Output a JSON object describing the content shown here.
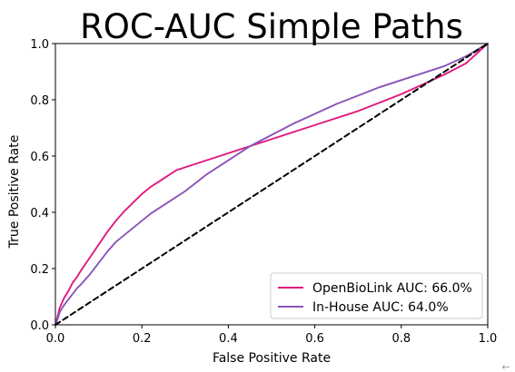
{
  "chart_data": {
    "type": "line",
    "title": "ROC-AUC Simple Paths",
    "xlabel": "False Positive Rate",
    "ylabel": "True Positive Rate",
    "xlim": [
      0.0,
      1.0
    ],
    "ylim": [
      0.0,
      1.0
    ],
    "x_ticks": [
      "0.0",
      "0.2",
      "0.4",
      "0.6",
      "0.8",
      "1.0"
    ],
    "y_ticks": [
      "0.0",
      "0.2",
      "0.4",
      "0.6",
      "0.8",
      "1.0"
    ],
    "grid": false,
    "legend_position": "lower-right",
    "series": [
      {
        "name": "OpenBioLink AUC: 66.0%",
        "color": "#e0197d",
        "style": "solid",
        "x": [
          0.0,
          0.005,
          0.01,
          0.02,
          0.03,
          0.04,
          0.05,
          0.06,
          0.08,
          0.1,
          0.12,
          0.14,
          0.16,
          0.18,
          0.2,
          0.22,
          0.24,
          0.26,
          0.28,
          0.3,
          0.35,
          0.4,
          0.45,
          0.5,
          0.55,
          0.6,
          0.65,
          0.7,
          0.75,
          0.8,
          0.85,
          0.9,
          0.95,
          1.0
        ],
        "y": [
          0.0,
          0.03,
          0.06,
          0.095,
          0.12,
          0.15,
          0.17,
          0.195,
          0.24,
          0.285,
          0.33,
          0.37,
          0.405,
          0.435,
          0.465,
          0.49,
          0.51,
          0.53,
          0.55,
          0.56,
          0.585,
          0.61,
          0.635,
          0.66,
          0.685,
          0.71,
          0.735,
          0.76,
          0.79,
          0.82,
          0.855,
          0.89,
          0.93,
          1.0
        ]
      },
      {
        "name": "In-House AUC: 64.0%",
        "color": "#8b54b8",
        "style": "solid",
        "x": [
          0.0,
          0.005,
          0.01,
          0.02,
          0.03,
          0.04,
          0.05,
          0.06,
          0.08,
          0.1,
          0.12,
          0.14,
          0.16,
          0.18,
          0.2,
          0.22,
          0.24,
          0.26,
          0.28,
          0.3,
          0.35,
          0.4,
          0.45,
          0.5,
          0.55,
          0.6,
          0.65,
          0.7,
          0.75,
          0.8,
          0.85,
          0.9,
          0.95,
          1.0
        ],
        "y": [
          0.0,
          0.02,
          0.045,
          0.07,
          0.09,
          0.11,
          0.13,
          0.145,
          0.18,
          0.22,
          0.26,
          0.295,
          0.32,
          0.345,
          0.37,
          0.395,
          0.415,
          0.435,
          0.455,
          0.475,
          0.535,
          0.585,
          0.635,
          0.675,
          0.715,
          0.75,
          0.785,
          0.815,
          0.845,
          0.87,
          0.895,
          0.92,
          0.955,
          1.0
        ]
      },
      {
        "name": "",
        "color": "#000000",
        "style": "dashed",
        "x": [
          0.0,
          1.0
        ],
        "y": [
          0.0,
          1.0
        ]
      }
    ]
  },
  "corner_glyph": "←"
}
